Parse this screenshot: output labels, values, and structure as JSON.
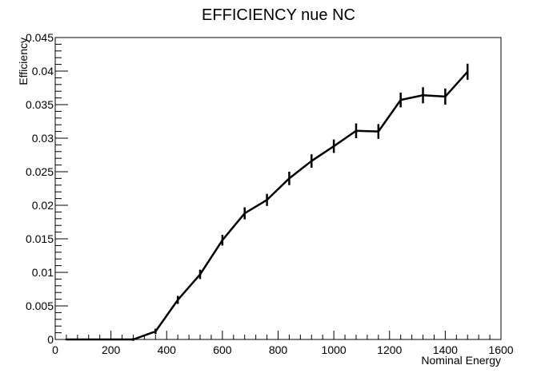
{
  "chart_data": {
    "type": "line",
    "title": "EFFICIENCY nue NC",
    "xlabel": "Nominal Energy",
    "ylabel": "Efficiency",
    "xlim": [
      0,
      1600
    ],
    "ylim": [
      0,
      0.045
    ],
    "grid": false,
    "x_major_ticks": [
      0,
      200,
      400,
      600,
      800,
      1000,
      1200,
      1400,
      1600
    ],
    "x_tick_labels": [
      "0",
      "200",
      "400",
      "600",
      "800",
      "1000",
      "1200",
      "1400",
      "1600"
    ],
    "y_major_ticks": [
      0,
      0.005,
      0.01,
      0.015,
      0.02,
      0.025,
      0.03,
      0.035,
      0.04,
      0.045
    ],
    "y_tick_labels": [
      "0",
      "0.005",
      "0.01",
      "0.015",
      "0.02",
      "0.025",
      "0.03",
      "0.035",
      "0.04",
      "0.045"
    ],
    "series": [
      {
        "color": "#000000",
        "x": [
          40,
          120,
          200,
          280,
          360,
          440,
          520,
          600,
          680,
          760,
          840,
          920,
          1000,
          1080,
          1160,
          1240,
          1320,
          1400,
          1480
        ],
        "y": [
          0,
          0,
          0,
          0,
          0.0012,
          0.0059,
          0.0097,
          0.0148,
          0.0188,
          0.0208,
          0.024,
          0.0266,
          0.0288,
          0.0311,
          0.031,
          0.0357,
          0.0364,
          0.0362,
          0.0399
        ],
        "yerr": [
          0,
          0,
          0,
          0.0002,
          0.0004,
          0.0006,
          0.0007,
          0.0008,
          0.0009,
          0.0009,
          0.001,
          0.001,
          0.001,
          0.0011,
          0.0011,
          0.0011,
          0.0012,
          0.0012,
          0.0012
        ]
      }
    ]
  }
}
